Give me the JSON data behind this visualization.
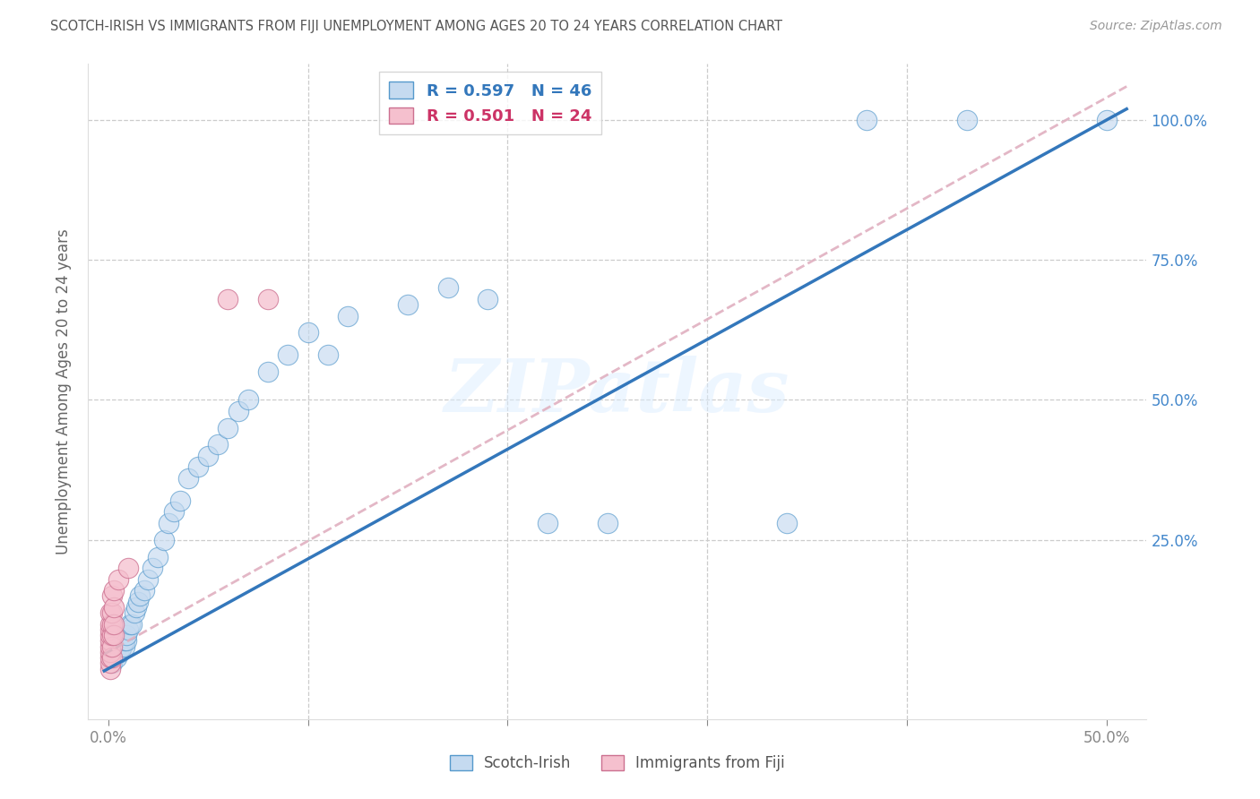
{
  "title": "SCOTCH-IRISH VS IMMIGRANTS FROM FIJI UNEMPLOYMENT AMONG AGES 20 TO 24 YEARS CORRELATION CHART",
  "source": "Source: ZipAtlas.com",
  "ylabel": "Unemployment Among Ages 20 to 24 years",
  "ytick_labels_right": [
    "100.0%",
    "75.0%",
    "50.0%",
    "25.0%"
  ],
  "ytick_values": [
    0.0,
    0.25,
    0.5,
    0.75,
    1.0
  ],
  "xtick_labels": [
    "0.0%",
    "",
    "",
    "",
    "",
    "50.0%"
  ],
  "xtick_values": [
    0.0,
    0.1,
    0.2,
    0.3,
    0.4,
    0.5
  ],
  "xlim": [
    -0.01,
    0.52
  ],
  "ylim": [
    -0.07,
    1.1
  ],
  "watermark": "ZIPatlas",
  "scotch_irish_fill": "#c5daf0",
  "fiji_fill": "#f5c0ce",
  "scotch_irish_edge": "#5599cc",
  "fiji_edge": "#cc7090",
  "scotch_line_color": "#3377bb",
  "fiji_line_color": "#e0b0c0",
  "right_ytick_color": "#4488cc",
  "r_scotch": "0.597",
  "n_scotch": "46",
  "r_fiji": "0.501",
  "n_fiji": "24",
  "legend1_label": "Scotch-Irish",
  "legend2_label": "Immigrants from Fiji",
  "scotch_x": [
    0.002,
    0.003,
    0.004,
    0.005,
    0.006,
    0.007,
    0.008,
    0.008,
    0.009,
    0.009,
    0.01,
    0.011,
    0.012,
    0.013,
    0.014,
    0.015,
    0.016,
    0.018,
    0.02,
    0.022,
    0.025,
    0.028,
    0.03,
    0.033,
    0.036,
    0.04,
    0.045,
    0.05,
    0.055,
    0.06,
    0.065,
    0.07,
    0.08,
    0.09,
    0.1,
    0.11,
    0.12,
    0.15,
    0.17,
    0.19,
    0.22,
    0.25,
    0.34,
    0.38,
    0.43,
    0.5
  ],
  "scotch_y": [
    0.03,
    0.04,
    0.04,
    0.05,
    0.05,
    0.06,
    0.06,
    0.07,
    0.07,
    0.08,
    0.09,
    0.1,
    0.1,
    0.12,
    0.13,
    0.14,
    0.15,
    0.16,
    0.18,
    0.2,
    0.22,
    0.25,
    0.28,
    0.3,
    0.32,
    0.36,
    0.38,
    0.4,
    0.42,
    0.45,
    0.48,
    0.5,
    0.55,
    0.58,
    0.62,
    0.58,
    0.65,
    0.67,
    0.7,
    0.68,
    0.28,
    0.28,
    0.28,
    1.0,
    1.0,
    1.0
  ],
  "fiji_x": [
    0.001,
    0.001,
    0.001,
    0.001,
    0.001,
    0.001,
    0.001,
    0.001,
    0.001,
    0.001,
    0.002,
    0.002,
    0.002,
    0.002,
    0.002,
    0.002,
    0.003,
    0.003,
    0.003,
    0.003,
    0.005,
    0.01,
    0.06,
    0.08
  ],
  "fiji_y": [
    0.02,
    0.03,
    0.04,
    0.05,
    0.06,
    0.07,
    0.08,
    0.09,
    0.1,
    0.12,
    0.04,
    0.06,
    0.08,
    0.1,
    0.12,
    0.15,
    0.08,
    0.1,
    0.13,
    0.16,
    0.18,
    0.2,
    0.68,
    0.68
  ]
}
